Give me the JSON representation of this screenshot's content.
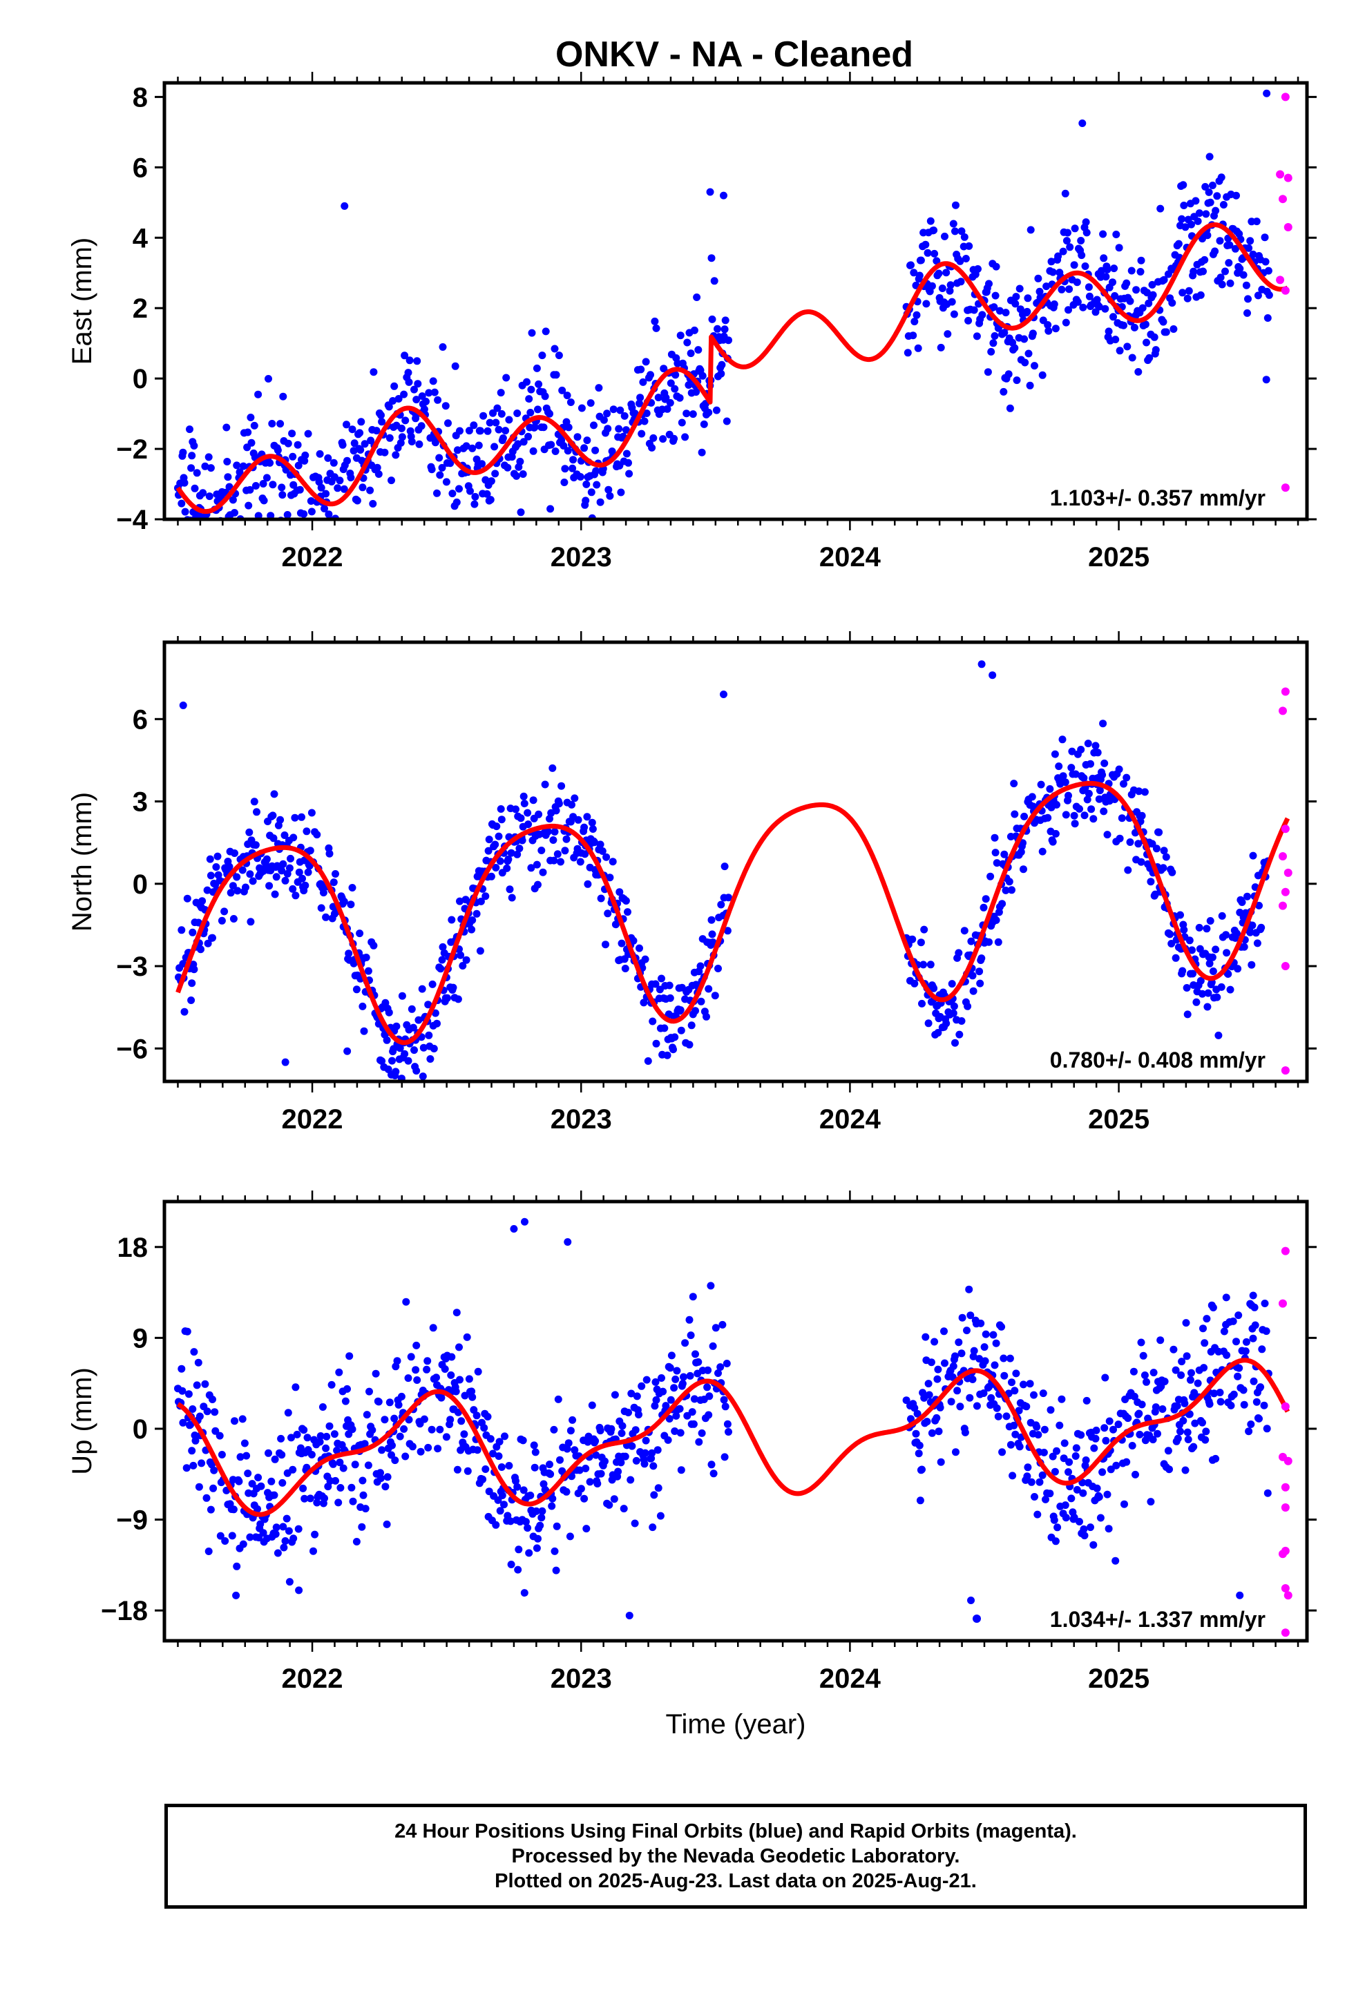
{
  "title": "ONKV  - NA - Cleaned",
  "footer": {
    "line1": "24 Hour Positions Using Final Orbits (blue) and Rapid Orbits (magenta).",
    "line2": "Processed by the Nevada Geodetic Laboratory.",
    "line3": "Plotted on 2025-Aug-23. Last data on 2025-Aug-21."
  },
  "colors": {
    "final": "#0000ff",
    "rapid": "#ff00ff",
    "model": "#ff0000",
    "frame": "#000000"
  },
  "chart_data": [
    {
      "type": "scatter",
      "component": "east",
      "ylabel": "East (mm)",
      "xlabel": "",
      "xlim": [
        2021.45,
        2025.7
      ],
      "ylim": [
        -4,
        8.4
      ],
      "yticks": [
        -4,
        -2,
        0,
        2,
        4,
        6,
        8
      ],
      "xticks": [
        2022,
        2023,
        2024,
        2025
      ],
      "rate_text": "1.103+/- 0.357 mm/yr",
      "model": {
        "offset": -0.9,
        "rate": 1.103,
        "annual": [
          0.25,
          -0.35
        ],
        "semiannual": [
          -0.85,
          -0.35
        ],
        "step_epoch": 2023.48,
        "step": 1.9
      },
      "noise": 0.9,
      "segments": [
        [
          2021.5,
          2023.55
        ],
        [
          2024.21,
          2025.56
        ]
      ],
      "extra_points": [
        [
          2022.12,
          4.9
        ],
        [
          2023.48,
          5.3
        ],
        [
          2023.53,
          5.2
        ],
        [
          2025.3,
          4.7
        ],
        [
          2025.55,
          8.1
        ],
        [
          2021.8,
          -3.9
        ]
      ],
      "rapid": [
        [
          2025.62,
          8.0
        ],
        [
          2025.6,
          5.8
        ],
        [
          2025.63,
          5.7
        ],
        [
          2025.61,
          5.1
        ],
        [
          2025.63,
          4.3
        ],
        [
          2025.6,
          2.8
        ],
        [
          2025.62,
          2.5
        ],
        [
          2025.62,
          -3.1
        ]
      ]
    },
    {
      "type": "scatter",
      "component": "north",
      "ylabel": "North (mm)",
      "xlabel": "",
      "xlim": [
        2021.45,
        2025.7
      ],
      "ylim": [
        -7.2,
        8.8
      ],
      "yticks": [
        -6,
        -3,
        0,
        3,
        6
      ],
      "xticks": [
        2022,
        2023,
        2024,
        2025
      ],
      "rate_text": "0.780+/- 0.408 mm/yr",
      "model": {
        "offset": -0.5,
        "rate": 0.78,
        "annual": [
          -3.0,
          2.2
        ],
        "semiannual": [
          0.6,
          0.3
        ],
        "step_epoch": 0,
        "step": 0
      },
      "noise": 0.85,
      "segments": [
        [
          2021.5,
          2023.55
        ],
        [
          2024.21,
          2025.56
        ]
      ],
      "extra_points": [
        [
          2024.49,
          8.0
        ],
        [
          2024.53,
          7.6
        ],
        [
          2021.52,
          6.5
        ],
        [
          2023.53,
          6.9
        ],
        [
          2022.13,
          -6.1
        ],
        [
          2021.9,
          -6.5
        ]
      ],
      "rapid": [
        [
          2025.62,
          7.0
        ],
        [
          2025.61,
          6.3
        ],
        [
          2025.62,
          2.0
        ],
        [
          2025.61,
          1.0
        ],
        [
          2025.63,
          0.4
        ],
        [
          2025.62,
          -0.3
        ],
        [
          2025.61,
          -0.8
        ],
        [
          2025.62,
          -3.0
        ],
        [
          2025.62,
          -6.8
        ]
      ]
    },
    {
      "type": "scatter",
      "component": "up",
      "ylabel": "Up (mm)",
      "xlabel": "Time (year)",
      "xlim": [
        2021.45,
        2025.7
      ],
      "ylim": [
        -21,
        22.5
      ],
      "yticks": [
        -18,
        -9,
        0,
        9,
        18
      ],
      "xticks": [
        2022,
        2023,
        2024,
        2025
      ],
      "rate_text": "1.034+/- 1.337 mm/yr",
      "model": {
        "offset": -1.0,
        "rate": 1.034,
        "annual": [
          3.0,
          -3.5
        ],
        "semiannual": [
          0.3,
          2.0
        ],
        "step_epoch": 0,
        "step": 0
      },
      "noise": 3.6,
      "segments": [
        [
          2021.5,
          2023.55
        ],
        [
          2024.21,
          2025.56
        ]
      ],
      "extra_points": [
        [
          2022.75,
          19.8
        ],
        [
          2022.79,
          20.5
        ],
        [
          2022.95,
          18.5
        ],
        [
          2023.18,
          -18.5
        ],
        [
          2021.95,
          -16.0
        ],
        [
          2025.45,
          -16.5
        ],
        [
          2024.45,
          -17.0
        ],
        [
          2025.4,
          13.0
        ],
        [
          2025.5,
          13.2
        ]
      ],
      "rapid": [
        [
          2025.62,
          17.6
        ],
        [
          2025.61,
          12.4
        ],
        [
          2025.62,
          2.2
        ],
        [
          2025.61,
          -2.8
        ],
        [
          2025.63,
          -3.2
        ],
        [
          2025.62,
          -5.8
        ],
        [
          2025.62,
          -7.8
        ],
        [
          2025.61,
          -12.4
        ],
        [
          2025.62,
          -12.1
        ],
        [
          2025.62,
          -15.8
        ],
        [
          2025.63,
          -16.5
        ],
        [
          2025.62,
          -20.2
        ]
      ]
    }
  ]
}
